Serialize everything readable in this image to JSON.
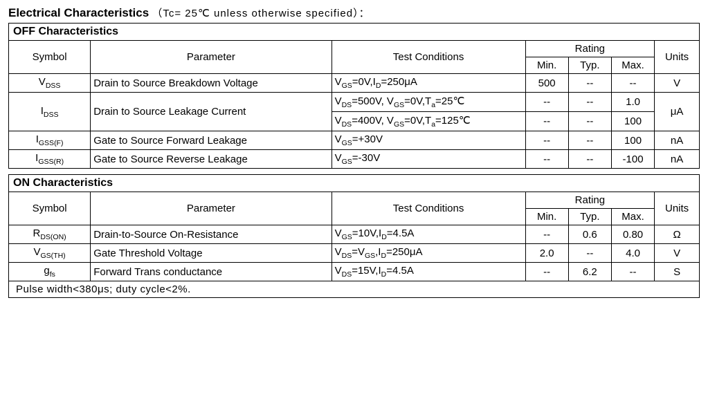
{
  "title": {
    "main": "Electrical Characteristics",
    "cond_pre": "（Tc= 25℃",
    "cond_post": "  unless otherwise specified）："
  },
  "columns": {
    "symbol": "Symbol",
    "parameter": "Parameter",
    "test": "Test Conditions",
    "rating": "Rating",
    "min": "Min.",
    "typ": "Typ.",
    "max": "Max.",
    "units": "Units"
  },
  "off": {
    "heading": "OFF Characteristics",
    "rows": {
      "vdss": {
        "sym_pre": "V",
        "sym_sub": "DSS",
        "param": "Drain to Source Breakdown Voltage",
        "test_html": "V<sub>GS</sub>=0V,I<sub>D</sub>=250μA",
        "min": "500",
        "typ": "--",
        "max": "--",
        "unit": "V"
      },
      "idss": {
        "sym_pre": "I",
        "sym_sub": "DSS",
        "param": "Drain to Source Leakage Current",
        "t1_html": "V<sub>DS</sub>=500V, V<sub>GS</sub>=0V,T<sub>a</sub>=25℃",
        "t1_min": "--",
        "t1_typ": "--",
        "t1_max": "1.0",
        "t2_html": "V<sub>DS</sub>=400V, V<sub>GS</sub>=0V,T<sub>a</sub>=125℃",
        "t2_min": "--",
        "t2_typ": "--",
        "t2_max": "100",
        "unit": "μA"
      },
      "igssf": {
        "sym_pre": "I",
        "sym_sub": "GSS(F)",
        "param": "Gate to Source Forward Leakage",
        "test_html": "V<sub>GS</sub>=+30V",
        "min": "--",
        "typ": "--",
        "max": "100",
        "unit": "nA"
      },
      "igssr": {
        "sym_pre": "I",
        "sym_sub": "GSS(R)",
        "param": "Gate to Source Reverse Leakage",
        "test_html": "V<sub>GS</sub>=-30V",
        "min": "--",
        "typ": "--",
        "max": "-100",
        "unit": "nA"
      }
    }
  },
  "on": {
    "heading": "ON Characteristics",
    "rows": {
      "rdson": {
        "sym_pre": "R",
        "sym_sub": "DS(ON)",
        "param": "Drain-to-Source On-Resistance",
        "test_html": "V<sub>GS</sub>=10V,I<sub>D</sub>=4.5A",
        "min": "--",
        "typ": "0.6",
        "max": "0.80",
        "unit": "Ω"
      },
      "vgsth": {
        "sym_pre": "V",
        "sym_sub": "GS(TH)",
        "param": "Gate Threshold Voltage",
        "test_html": "V<sub>DS</sub>=V<sub>GS</sub>,I<sub>D</sub>=250μA",
        "min": "2.0",
        "typ": "--",
        "max": "4.0",
        "unit": "V"
      },
      "gfs": {
        "sym_pre": "g",
        "sym_sub": "fs",
        "param": "Forward Trans conductance",
        "test_html": "V<sub>DS</sub>=15V,I<sub>D</sub>=4.5A",
        "min": "--",
        "typ": "6.2",
        "max": "--",
        "unit": "S"
      }
    },
    "note": "Pulse width<380μs; duty cycle<2%."
  }
}
